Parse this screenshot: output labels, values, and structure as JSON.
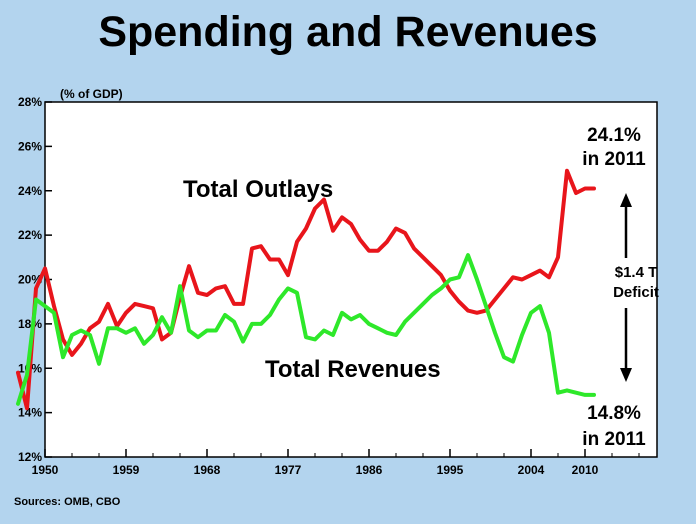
{
  "title": "Spending and Revenues",
  "source": "Sources:  OMB, CBO",
  "chart_data": {
    "type": "line",
    "title": "Spending and Revenues",
    "ylabel": "(% of GDP)",
    "xlabel": "",
    "ylim": [
      12,
      28
    ],
    "xlim": [
      1950,
      2018
    ],
    "y_ticks": [
      "12%",
      "14%",
      "16%",
      "18%",
      "20%",
      "22%",
      "24%",
      "26%",
      "28%"
    ],
    "y_tick_values": [
      12,
      14,
      16,
      18,
      20,
      22,
      24,
      26,
      28
    ],
    "x_ticks": [
      "1950",
      "1959",
      "1968",
      "1977",
      "1986",
      "1995",
      "2004",
      "2010"
    ],
    "x_tick_values": [
      1950,
      1959,
      1968,
      1977,
      1986,
      1995,
      2004,
      2010
    ],
    "grid": false,
    "legend": "none",
    "series": [
      {
        "name": "Total Outlays",
        "color": "#e8151b",
        "x": [
          1947,
          1948,
          1949,
          1950,
          1951,
          1952,
          1953,
          1954,
          1955,
          1956,
          1957,
          1958,
          1959,
          1960,
          1961,
          1962,
          1963,
          1964,
          1965,
          1966,
          1967,
          1968,
          1969,
          1970,
          1971,
          1972,
          1973,
          1974,
          1975,
          1976,
          1977,
          1978,
          1979,
          1980,
          1981,
          1982,
          1983,
          1984,
          1985,
          1986,
          1987,
          1988,
          1989,
          1990,
          1991,
          1992,
          1993,
          1994,
          1995,
          1996,
          1997,
          1998,
          1999,
          2000,
          2001,
          2002,
          2003,
          2004,
          2005,
          2006,
          2007,
          2008,
          2009,
          2010,
          2011
        ],
        "values": [
          15.8,
          14.2,
          19.6,
          20.5,
          18.8,
          17.3,
          16.6,
          17.1,
          17.8,
          18.1,
          18.9,
          17.9,
          18.5,
          18.9,
          18.8,
          18.7,
          17.3,
          17.6,
          19.2,
          20.6,
          19.4,
          19.3,
          19.6,
          19.7,
          18.9,
          18.9,
          21.4,
          21.5,
          20.9,
          20.9,
          20.2,
          21.7,
          22.3,
          23.2,
          23.6,
          22.2,
          22.8,
          22.5,
          21.8,
          21.3,
          21.3,
          21.7,
          22.3,
          22.1,
          21.4,
          21.0,
          20.6,
          20.2,
          19.5,
          19.0,
          18.6,
          18.5,
          18.6,
          19.1,
          19.6,
          20.1,
          20.0,
          20.2,
          20.4,
          20.1,
          21.0,
          24.9,
          23.9,
          24.1,
          24.1
        ]
      },
      {
        "name": "Total Revenues",
        "color": "#2ee82a",
        "x": [
          1947,
          1948,
          1949,
          1950,
          1951,
          1952,
          1953,
          1954,
          1955,
          1956,
          1957,
          1958,
          1959,
          1960,
          1961,
          1962,
          1963,
          1964,
          1965,
          1966,
          1967,
          1968,
          1969,
          1970,
          1971,
          1972,
          1973,
          1974,
          1975,
          1976,
          1977,
          1978,
          1979,
          1980,
          1981,
          1982,
          1983,
          1984,
          1985,
          1986,
          1987,
          1988,
          1989,
          1990,
          1991,
          1992,
          1993,
          1994,
          1995,
          1996,
          1997,
          1998,
          1999,
          2000,
          2001,
          2002,
          2003,
          2004,
          2005,
          2006,
          2007,
          2008,
          2009,
          2010,
          2011
        ],
        "values": [
          14.4,
          15.7,
          19.1,
          18.8,
          18.5,
          16.5,
          17.5,
          17.7,
          17.5,
          16.2,
          17.8,
          17.8,
          17.6,
          17.8,
          17.1,
          17.5,
          18.3,
          17.6,
          19.7,
          17.7,
          17.4,
          17.7,
          17.7,
          18.4,
          18.1,
          17.2,
          18.0,
          18.0,
          18.4,
          19.1,
          19.6,
          19.4,
          17.4,
          17.3,
          17.7,
          17.5,
          18.5,
          18.2,
          18.4,
          18.0,
          17.8,
          17.6,
          17.5,
          18.1,
          18.5,
          18.9,
          19.3,
          19.6,
          20.0,
          20.1,
          21.1,
          20.0,
          18.8,
          17.6,
          16.5,
          16.3,
          17.5,
          18.5,
          18.8,
          17.6,
          14.9,
          15.0,
          14.9,
          14.8,
          14.8
        ]
      }
    ],
    "annotations": {
      "outlays_label": "Total Outlays",
      "revenues_label": "Total Revenues",
      "outlays_2011_value": "24.1%",
      "outlays_2011_year": "in 2011",
      "revenues_2011_value": "14.8%",
      "revenues_2011_year": "in 2011",
      "deficit_amount": "$1.4 T",
      "deficit_label": "Deficit"
    }
  }
}
